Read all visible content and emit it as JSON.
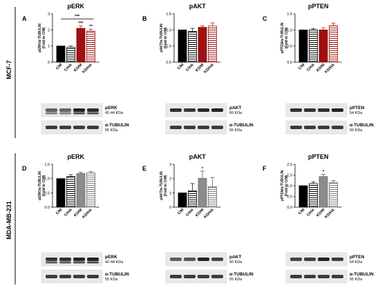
{
  "figure": {
    "row_labels": [
      "MCF-7",
      "MDA-MB-231"
    ]
  },
  "colors": {
    "CM": "#000000",
    "CHA": "#ffffff",
    "KDM_row1": "#a01010",
    "KDHA_row1": "#a01010",
    "KDM_row2": "#8c8c8c",
    "KDHA_row2": "#a8a8a8"
  },
  "chart_data": [
    {
      "panel": "A",
      "type": "bar",
      "title": "pERK",
      "ylabel": "pERK/α-TUBULIN (Fold to C/M)",
      "categories": [
        "C/M",
        "C/HA",
        "KD/M",
        "KD/HA"
      ],
      "values": [
        1.0,
        0.92,
        2.1,
        1.93
      ],
      "errors": [
        0.0,
        0.08,
        0.15,
        0.12
      ],
      "ylim": [
        0,
        3
      ],
      "yticks": [
        0,
        1,
        2,
        3
      ],
      "annotations": [
        {
          "bar": 2,
          "text": "***"
        },
        {
          "bar": 3,
          "text": "**"
        }
      ],
      "bracket": {
        "from": 0,
        "to": 3,
        "text": "***",
        "y": 2.68
      },
      "blots": [
        {
          "label": "pERK",
          "size": "42-44 KDa"
        },
        {
          "label": "α-TUBULIN",
          "size": "55 KDa"
        }
      ]
    },
    {
      "panel": "B",
      "type": "bar",
      "title": "pAKT",
      "ylabel": "pAKT/α-TUBULIN (Fold to C/M)",
      "categories": [
        "C/M",
        "C/HA",
        "KD/M",
        "KD/HA"
      ],
      "values": [
        1.0,
        0.95,
        1.08,
        1.12
      ],
      "errors": [
        0.0,
        0.1,
        0.05,
        0.1
      ],
      "ylim": [
        0,
        1.5
      ],
      "yticks": [
        0.0,
        0.5,
        1.0,
        1.5
      ],
      "annotations": [],
      "bracket": null,
      "blots": [
        {
          "label": "pAKT",
          "size": "60 KDa"
        },
        {
          "label": "α-TUBULIN",
          "size": "55 KDa"
        }
      ]
    },
    {
      "panel": "C",
      "type": "bar",
      "title": "pPTEN",
      "ylabel": "pPTEN/α-TUBULIN (Fold to C/M)",
      "categories": [
        "C/M",
        "C/HA",
        "KD/M",
        "KD/HA"
      ],
      "values": [
        1.0,
        1.0,
        1.0,
        1.13
      ],
      "errors": [
        0.0,
        0.04,
        0.07,
        0.08
      ],
      "ylim": [
        0,
        1.5
      ],
      "yticks": [
        0.0,
        0.5,
        1.0,
        1.5
      ],
      "annotations": [],
      "bracket": null,
      "blots": [
        {
          "label": "pPTEN",
          "size": "54 KDa"
        },
        {
          "label": "α-TUBULIN",
          "size": "55 KDa"
        }
      ]
    },
    {
      "panel": "D",
      "type": "bar",
      "title": "pERK",
      "ylabel": "pERK/α-TUBULIN (Fold to C/M)",
      "categories": [
        "C/M",
        "C/HA",
        "KD/M",
        "KD/HA"
      ],
      "values": [
        1.0,
        1.07,
        1.18,
        1.2
      ],
      "errors": [
        0.0,
        0.07,
        0.05,
        0.05
      ],
      "ylim": [
        0,
        1.5
      ],
      "yticks": [
        0.0,
        0.5,
        1.0,
        1.5
      ],
      "annotations": [],
      "bracket": null,
      "blots": [
        {
          "label": "pERK",
          "size": "42-44 KDa"
        },
        {
          "label": "α-TUBULIN",
          "size": "55 KDa"
        }
      ]
    },
    {
      "panel": "E",
      "type": "bar",
      "title": "pAKT",
      "ylabel": "pAKT/α-TUBULIN (Fold to C/M)",
      "categories": [
        "C/M",
        "C/HA",
        "KD/M",
        "KD/HA"
      ],
      "values": [
        1.0,
        1.15,
        2.02,
        1.43
      ],
      "errors": [
        0.0,
        0.5,
        0.5,
        0.65
      ],
      "ylim": [
        0,
        3
      ],
      "yticks": [
        0,
        1,
        2,
        3
      ],
      "annotations": [
        {
          "bar": 2,
          "text": "*"
        }
      ],
      "bracket": null,
      "blots": [
        {
          "label": "pAKT",
          "size": "60 KDa"
        },
        {
          "label": "α-TUBULIN",
          "size": "55 KDa"
        }
      ]
    },
    {
      "panel": "F",
      "type": "bar",
      "title": "pPTEN",
      "ylabel": "pPTEN/α-TUBULIN (Fold to C/M)",
      "categories": [
        "C/M",
        "C/HA",
        "KD/M",
        "KD/HA"
      ],
      "values": [
        1.0,
        1.1,
        1.43,
        1.14
      ],
      "errors": [
        0.0,
        0.08,
        0.1,
        0.1
      ],
      "ylim": [
        0,
        2
      ],
      "yticks": [
        0.0,
        0.5,
        1.0,
        1.5,
        2.0
      ],
      "annotations": [
        {
          "bar": 2,
          "text": "*"
        }
      ],
      "bracket": null,
      "blots": [
        {
          "label": "pPTEN",
          "size": "54 KDa"
        },
        {
          "label": "α-TUBULIN",
          "size": "55 KDa"
        }
      ]
    }
  ]
}
